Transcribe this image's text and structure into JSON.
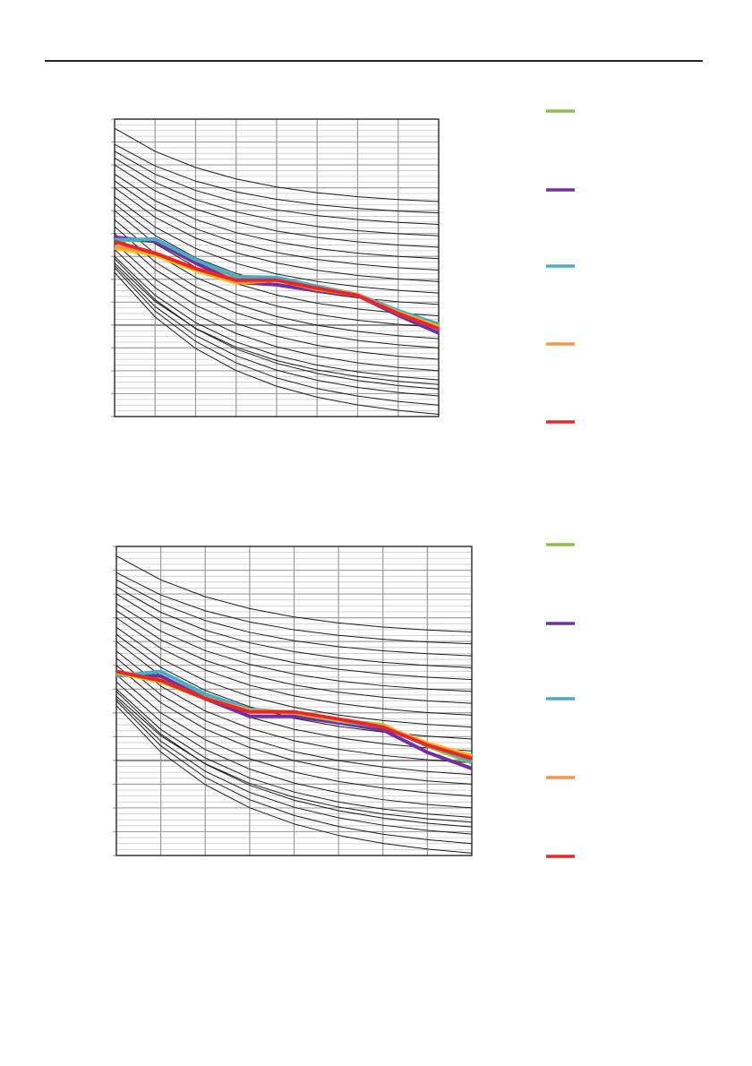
{
  "chart_data": [
    {
      "type": "line",
      "title": "",
      "xlabel": "",
      "ylabel": "",
      "xlim": [
        0,
        8
      ],
      "ylim": [
        0,
        13
      ],
      "grid": true,
      "legend_placement": "right",
      "x": [
        0,
        1,
        2,
        3,
        4,
        5,
        6,
        7,
        8
      ],
      "series": [
        {
          "name": "green",
          "color": "#8dc04a",
          "values": [
            7.7,
            7.7,
            6.8,
            6.1,
            6.0,
            5.7,
            5.3,
            4.6,
            4.0
          ]
        },
        {
          "name": "purple",
          "color": "#7030a0",
          "values": [
            7.84,
            7.65,
            6.71,
            5.88,
            5.76,
            5.49,
            5.29,
            4.43,
            3.65
          ]
        },
        {
          "name": "blue",
          "color": "#4bacc6",
          "values": [
            7.73,
            7.76,
            6.86,
            6.12,
            6.08,
            5.69,
            5.33,
            4.63,
            4.04
          ]
        },
        {
          "name": "yellow",
          "color": "#ffc000",
          "values": [
            7.37,
            7.06,
            6.39,
            5.84,
            5.96,
            5.57,
            5.29,
            4.55,
            3.92
          ]
        },
        {
          "name": "orange",
          "color": "#f79646",
          "values": [
            7.45,
            7.14,
            6.47,
            5.88,
            5.96,
            5.61,
            5.33,
            4.51,
            3.84
          ]
        },
        {
          "name": "red",
          "color": "#e8262b",
          "values": [
            7.65,
            7.14,
            6.47,
            5.96,
            5.96,
            5.61,
            5.29,
            4.51,
            3.84
          ]
        }
      ],
      "reference_curves": [
        [
          12.6,
          9.4
        ],
        [
          11.9,
          8.9
        ],
        [
          11.6,
          8.4
        ],
        [
          11.3,
          7.9
        ],
        [
          11.0,
          7.4
        ],
        [
          10.6,
          6.9
        ],
        [
          10.3,
          6.4
        ],
        [
          10.0,
          5.9
        ],
        [
          9.6,
          5.4
        ],
        [
          9.3,
          4.9
        ],
        [
          9.0,
          4.4
        ],
        [
          8.6,
          3.9
        ],
        [
          8.3,
          3.4
        ],
        [
          8.0,
          3.0
        ],
        [
          7.6,
          2.5
        ],
        [
          7.3,
          2.0
        ],
        [
          7.0,
          1.6
        ],
        [
          6.7,
          1.4
        ],
        [
          6.9,
          1.2
        ],
        [
          6.6,
          0.9
        ],
        [
          6.5,
          0.5
        ],
        [
          6.3,
          0.1
        ]
      ],
      "legend": [
        "green",
        "purple",
        "blue",
        "orange",
        "red"
      ]
    },
    {
      "type": "line",
      "title": "",
      "xlabel": "",
      "ylabel": "",
      "xlim": [
        0,
        8
      ],
      "ylim": [
        0,
        13
      ],
      "grid": true,
      "legend_placement": "right",
      "x": [
        0,
        1,
        2,
        3,
        4,
        5,
        6,
        7,
        8
      ],
      "series": [
        {
          "name": "green",
          "color": "#8dc04a",
          "values": [
            7.6,
            7.5,
            6.7,
            6.1,
            6.0,
            5.7,
            5.5,
            4.6,
            3.9
          ]
        },
        {
          "name": "purple",
          "color": "#7030a0",
          "values": [
            7.66,
            7.55,
            6.6,
            5.85,
            5.85,
            5.58,
            5.28,
            4.34,
            3.66
          ]
        },
        {
          "name": "blue",
          "color": "#4bacc6",
          "values": [
            7.55,
            7.74,
            6.79,
            6.15,
            6.0,
            5.66,
            5.4,
            4.72,
            3.96
          ]
        },
        {
          "name": "yellow",
          "color": "#ffc000",
          "values": [
            7.7,
            7.3,
            6.6,
            6.1,
            6.0,
            5.7,
            5.45,
            4.72,
            4.2
          ]
        },
        {
          "name": "orange",
          "color": "#f79646",
          "values": [
            7.74,
            7.36,
            6.6,
            6.08,
            6.04,
            5.74,
            5.42,
            4.68,
            4.12
          ]
        },
        {
          "name": "red",
          "color": "#e8262b",
          "values": [
            7.74,
            7.36,
            6.6,
            6.04,
            6.04,
            5.74,
            5.4,
            4.64,
            4.08
          ]
        }
      ],
      "reference_curves": [
        [
          12.6,
          9.4
        ],
        [
          11.9,
          8.9
        ],
        [
          11.6,
          8.4
        ],
        [
          11.3,
          7.9
        ],
        [
          11.0,
          7.4
        ],
        [
          10.6,
          6.9
        ],
        [
          10.3,
          6.4
        ],
        [
          10.0,
          5.9
        ],
        [
          9.6,
          5.4
        ],
        [
          9.3,
          4.9
        ],
        [
          9.0,
          4.4
        ],
        [
          8.6,
          3.9
        ],
        [
          8.3,
          3.4
        ],
        [
          8.0,
          3.0
        ],
        [
          7.6,
          2.5
        ],
        [
          7.3,
          2.0
        ],
        [
          7.0,
          1.6
        ],
        [
          6.7,
          1.4
        ],
        [
          6.9,
          1.2
        ],
        [
          6.6,
          0.9
        ],
        [
          6.5,
          0.5
        ],
        [
          6.3,
          0.1
        ]
      ],
      "legend": [
        "green",
        "purple",
        "blue",
        "orange",
        "red"
      ]
    }
  ]
}
